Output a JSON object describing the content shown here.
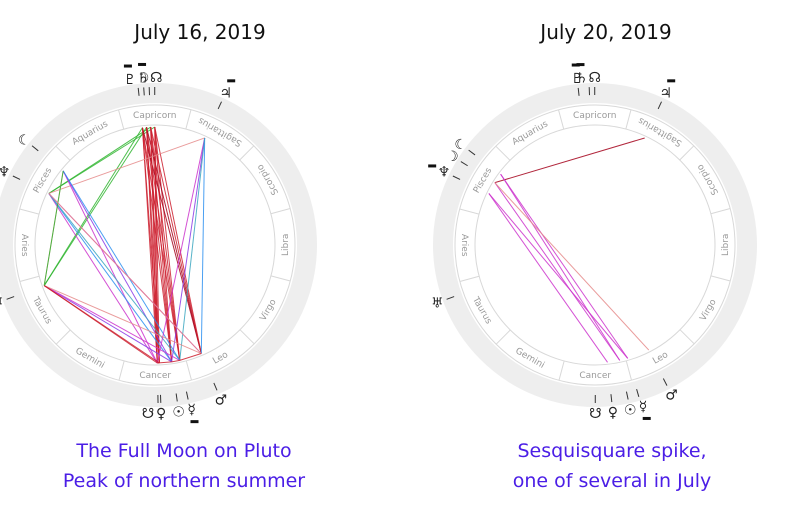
{
  "zodiac_signs": [
    "Aries",
    "Taurus",
    "Gemini",
    "Cancer",
    "Leo",
    "Virgo",
    "Libra",
    "Scorpio",
    "Sagittarius",
    "Capricorn",
    "Aquarius",
    "Pisces"
  ],
  "colors": {
    "caption": "#4b1ee6",
    "wheel_ring": "#eeeeee",
    "divider": "#d8d8d8",
    "aspect_red": "#cc1f2e",
    "aspect_darkred": "#a3001a",
    "aspect_pink": "#e58a8a",
    "aspect_magenta": "#cc33cc",
    "aspect_purple": "#8a3ae6",
    "aspect_blue": "#2b8ff0",
    "aspect_teal": "#3aa6c0",
    "aspect_green": "#2fb52f"
  },
  "charts": [
    {
      "title": "July 16, 2019",
      "caption_line1": "The Full Moon on Pluto",
      "caption_line2": "Peak of northern summer",
      "planets": [
        {
          "glyph": "☽",
          "name": "moon-icon",
          "longitude": 289
        },
        {
          "glyph": "♇",
          "name": "pluto-icon",
          "longitude": 291,
          "retrograde": true
        },
        {
          "glyph": "☊",
          "name": "north-node-icon",
          "longitude": 285
        },
        {
          "glyph": "♄",
          "name": "saturn-icon",
          "longitude": 287,
          "retrograde": true
        },
        {
          "glyph": "♃",
          "name": "jupiter-icon",
          "longitude": 260,
          "retrograde": true
        },
        {
          "glyph": "☾",
          "name": "lilith-icon",
          "longitude": 336
        },
        {
          "glyph": "♆",
          "name": "neptune-icon",
          "longitude": 349,
          "retrograde": true
        },
        {
          "glyph": "♅",
          "name": "uranus-icon",
          "longitude": 35
        },
        {
          "glyph": "♀",
          "name": "venus-icon",
          "longitude": 107
        },
        {
          "glyph": "☋",
          "name": "south-node-icon",
          "longitude": 106
        },
        {
          "glyph": "☉",
          "name": "sun-icon",
          "longitude": 113
        },
        {
          "glyph": "☿",
          "name": "mercury-icon",
          "longitude": 117,
          "retrograde": true
        },
        {
          "glyph": "♂",
          "name": "mars-icon",
          "longitude": 128
        }
      ]
    },
    {
      "title": "July 20, 2019",
      "caption_line1": "Sesquisquare spike,",
      "caption_line2": "one of several in July",
      "planets": [
        {
          "glyph": "♇",
          "name": "pluto-icon",
          "longitude": 291,
          "retrograde": true
        },
        {
          "glyph": "☊",
          "name": "north-node-icon",
          "longitude": 285
        },
        {
          "glyph": "♄",
          "name": "saturn-icon",
          "longitude": 287,
          "retrograde": true
        },
        {
          "glyph": "♃",
          "name": "jupiter-icon",
          "longitude": 260,
          "retrograde": true
        },
        {
          "glyph": "☾",
          "name": "lilith-icon",
          "longitude": 338
        },
        {
          "glyph": "☽",
          "name": "moon-icon",
          "longitude": 343
        },
        {
          "glyph": "♆",
          "name": "neptune-icon",
          "longitude": 349,
          "retrograde": true
        },
        {
          "glyph": "♅",
          "name": "uranus-icon",
          "longitude": 35
        },
        {
          "glyph": "☋",
          "name": "south-node-icon",
          "longitude": 105
        },
        {
          "glyph": "♀",
          "name": "venus-icon",
          "longitude": 111
        },
        {
          "glyph": "☉",
          "name": "sun-icon",
          "longitude": 117
        },
        {
          "glyph": "☿",
          "name": "mercury-icon",
          "longitude": 121,
          "retrograde": true
        },
        {
          "glyph": "♂",
          "name": "mars-icon",
          "longitude": 132
        }
      ]
    }
  ]
}
